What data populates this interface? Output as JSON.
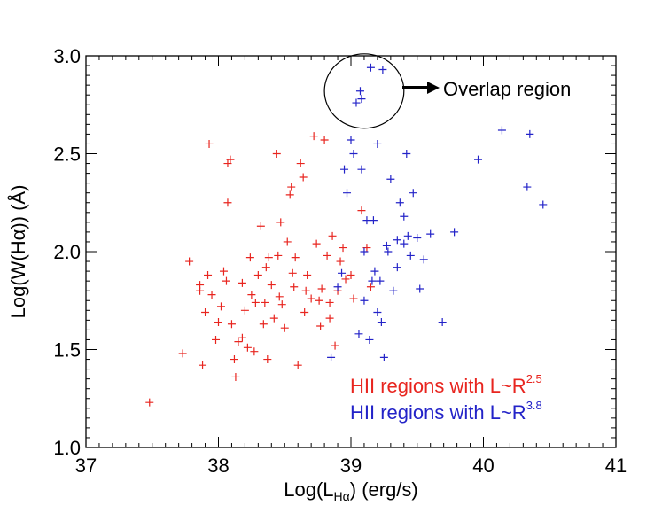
{
  "chart_data": {
    "type": "scatter",
    "title": "",
    "xlabel": {
      "prefix": "Log(L",
      "sub": "Hα",
      "suffix": ") (erg/s)"
    },
    "ylabel": "Log(W(Hα)) (Å)",
    "xlim": [
      37,
      41
    ],
    "ylim": [
      1.0,
      3.0
    ],
    "x_ticks": [
      37,
      38,
      39,
      40,
      41
    ],
    "y_ticks": [
      1.0,
      1.5,
      2.0,
      2.5,
      3.0
    ],
    "x_tick_labels": [
      "37",
      "38",
      "39",
      "40",
      "41"
    ],
    "y_tick_labels": [
      "1.0",
      "1.5",
      "2.0",
      "2.5",
      "3.0"
    ],
    "legend_position": "bottom-right",
    "annotation": {
      "text": "Overlap region",
      "circle_center": [
        39.1,
        2.82
      ],
      "circle_radius": [
        0.3,
        0.19
      ]
    },
    "series": [
      {
        "name": "HII regions with L~R^2.5",
        "label_main": "HII regions with L~R",
        "label_exp": "2.5",
        "color": "#e8251f",
        "points": [
          [
            37.48,
            1.23
          ],
          [
            37.73,
            1.48
          ],
          [
            37.78,
            1.95
          ],
          [
            37.86,
            1.8
          ],
          [
            37.88,
            1.42
          ],
          [
            37.9,
            1.69
          ],
          [
            37.92,
            1.88
          ],
          [
            37.93,
            2.55
          ],
          [
            37.95,
            1.78
          ],
          [
            37.98,
            1.55
          ],
          [
            38.0,
            1.64
          ],
          [
            38.02,
            1.72
          ],
          [
            38.04,
            1.9
          ],
          [
            38.07,
            2.25
          ],
          [
            38.07,
            2.45
          ],
          [
            38.09,
            2.47
          ],
          [
            38.1,
            1.63
          ],
          [
            38.12,
            1.45
          ],
          [
            38.13,
            1.36
          ],
          [
            38.15,
            1.54
          ],
          [
            38.18,
            1.84
          ],
          [
            38.2,
            1.7
          ],
          [
            38.22,
            1.51
          ],
          [
            38.24,
            1.97
          ],
          [
            38.25,
            1.78
          ],
          [
            38.27,
            1.49
          ],
          [
            38.3,
            1.88
          ],
          [
            38.32,
            2.13
          ],
          [
            38.34,
            1.63
          ],
          [
            38.35,
            1.74
          ],
          [
            38.37,
            1.45
          ],
          [
            38.38,
            1.97
          ],
          [
            38.4,
            1.83
          ],
          [
            38.42,
            1.66
          ],
          [
            38.44,
            2.5
          ],
          [
            38.45,
            1.98
          ],
          [
            38.47,
            2.15
          ],
          [
            38.48,
            1.73
          ],
          [
            38.5,
            1.61
          ],
          [
            38.52,
            2.05
          ],
          [
            38.54,
            2.29
          ],
          [
            38.55,
            2.33
          ],
          [
            38.57,
            1.82
          ],
          [
            38.58,
            1.97
          ],
          [
            38.6,
            1.42
          ],
          [
            38.62,
            2.45
          ],
          [
            38.64,
            2.38
          ],
          [
            38.65,
            1.69
          ],
          [
            38.67,
            1.88
          ],
          [
            38.7,
            1.76
          ],
          [
            38.72,
            2.59
          ],
          [
            38.74,
            2.04
          ],
          [
            38.76,
            1.75
          ],
          [
            38.77,
            1.62
          ],
          [
            38.8,
            2.57
          ],
          [
            38.82,
            1.98
          ],
          [
            38.84,
            1.74
          ],
          [
            38.86,
            2.08
          ],
          [
            38.88,
            1.52
          ],
          [
            38.9,
            1.8
          ],
          [
            38.92,
            1.95
          ],
          [
            38.94,
            2.02
          ],
          [
            38.96,
            1.86
          ],
          [
            39.0,
            1.88
          ],
          [
            39.02,
            1.76
          ],
          [
            39.08,
            2.21
          ],
          [
            39.12,
            2.02
          ],
          [
            39.15,
            1.82
          ],
          [
            37.86,
            1.83
          ],
          [
            38.06,
            1.85
          ],
          [
            38.18,
            1.56
          ],
          [
            38.28,
            1.74
          ],
          [
            38.36,
            1.92
          ],
          [
            38.46,
            1.77
          ],
          [
            38.56,
            1.89
          ],
          [
            38.66,
            1.8
          ],
          [
            38.78,
            1.81
          ],
          [
            38.84,
            1.66
          ]
        ]
      },
      {
        "name": "HII regions with L~R^3.8",
        "label_main": "HII regions with L~R",
        "label_exp": "3.8",
        "color": "#2323c8",
        "points": [
          [
            38.85,
            1.46
          ],
          [
            38.9,
            1.82
          ],
          [
            38.93,
            1.89
          ],
          [
            38.95,
            2.42
          ],
          [
            38.97,
            2.3
          ],
          [
            39.0,
            2.57
          ],
          [
            39.02,
            2.5
          ],
          [
            39.04,
            2.76
          ],
          [
            39.06,
            1.58
          ],
          [
            39.07,
            2.82
          ],
          [
            39.08,
            2.78
          ],
          [
            39.1,
            2.0
          ],
          [
            39.12,
            2.16
          ],
          [
            39.14,
            1.55
          ],
          [
            39.15,
            2.94
          ],
          [
            39.17,
            2.16
          ],
          [
            39.18,
            1.9
          ],
          [
            39.2,
            2.55
          ],
          [
            39.22,
            1.85
          ],
          [
            39.24,
            2.93
          ],
          [
            39.25,
            1.46
          ],
          [
            39.28,
            2.0
          ],
          [
            39.3,
            2.37
          ],
          [
            39.32,
            1.8
          ],
          [
            39.35,
            2.06
          ],
          [
            39.37,
            2.25
          ],
          [
            39.4,
            2.04
          ],
          [
            39.42,
            2.5
          ],
          [
            39.45,
            1.98
          ],
          [
            39.47,
            2.3
          ],
          [
            39.5,
            2.07
          ],
          [
            39.52,
            1.81
          ],
          [
            39.55,
            1.96
          ],
          [
            39.6,
            2.09
          ],
          [
            39.69,
            1.64
          ],
          [
            39.78,
            2.1
          ],
          [
            39.96,
            2.47
          ],
          [
            40.14,
            2.62
          ],
          [
            40.33,
            2.33
          ],
          [
            40.35,
            2.6
          ],
          [
            40.45,
            2.24
          ],
          [
            39.08,
            2.42
          ],
          [
            39.1,
            1.75
          ],
          [
            39.16,
            1.85
          ],
          [
            39.2,
            1.69
          ],
          [
            39.27,
            2.03
          ],
          [
            39.35,
            1.92
          ],
          [
            39.4,
            2.18
          ],
          [
            39.43,
            2.08
          ],
          [
            39.23,
            1.64
          ]
        ]
      }
    ]
  }
}
